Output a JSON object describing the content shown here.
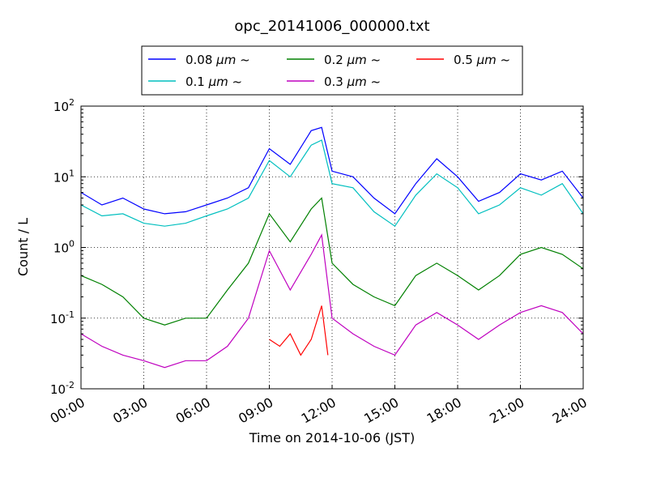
{
  "chart_data": {
    "type": "line",
    "title": "opc_20141006_000000.txt",
    "xlabel": "Time on 2014-10-06 (JST)",
    "ylabel": "Count / L",
    "xlim": [
      "2014-10-06 00:00",
      "2014-10-07 00:00"
    ],
    "x_ticks": [
      "00:00",
      "03:00",
      "06:00",
      "09:00",
      "12:00",
      "15:00",
      "18:00",
      "21:00",
      "24:00"
    ],
    "y_scale": "log",
    "ylim": [
      0.01,
      100
    ],
    "y_ticks": [
      {
        "base": "10",
        "exp": "-2",
        "value": 0.01
      },
      {
        "base": "10",
        "exp": "-1",
        "value": 0.1
      },
      {
        "base": "10",
        "exp": "0",
        "value": 1
      },
      {
        "base": "10",
        "exp": "1",
        "value": 10
      },
      {
        "base": "10",
        "exp": "2",
        "value": 100
      }
    ],
    "grid": true,
    "legend_position": "top-center, above plot",
    "series": [
      {
        "name": "0.08 μm ~",
        "label_value": "0.08",
        "label_unit": "μm",
        "label_suffix": "~",
        "color": "#0000ff",
        "x_hours": [
          0,
          1,
          2,
          3,
          4,
          5,
          6,
          7,
          8,
          9,
          10,
          11,
          11.5,
          12,
          13,
          14,
          15,
          16,
          17,
          18,
          19,
          20,
          21,
          22,
          23,
          24
        ],
        "values": [
          6,
          4,
          5,
          3.5,
          3,
          3.2,
          4,
          5,
          7,
          25,
          15,
          45,
          50,
          12,
          10,
          5,
          3,
          8,
          18,
          10,
          4.5,
          6,
          11,
          9,
          12,
          5
        ]
      },
      {
        "name": "0.1 μm ~",
        "label_value": "0.1",
        "label_unit": "μm",
        "label_suffix": "~",
        "color": "#00bfbf",
        "x_hours": [
          0,
          1,
          2,
          3,
          4,
          5,
          6,
          7,
          8,
          9,
          10,
          11,
          11.5,
          12,
          13,
          14,
          15,
          16,
          17,
          18,
          19,
          20,
          21,
          22,
          23,
          24
        ],
        "values": [
          4,
          2.8,
          3,
          2.2,
          2,
          2.2,
          2.8,
          3.5,
          5,
          17,
          10,
          28,
          33,
          8,
          7,
          3.2,
          2,
          5.5,
          11,
          7,
          3,
          4,
          7,
          5.5,
          8,
          3
        ]
      },
      {
        "name": "0.2 μm ~",
        "label_value": "0.2",
        "label_unit": "μm",
        "label_suffix": "~",
        "color": "#008000",
        "x_hours": [
          0,
          1,
          2,
          3,
          4,
          5,
          6,
          7,
          8,
          9,
          10,
          11,
          11.5,
          12,
          13,
          14,
          15,
          16,
          17,
          18,
          19,
          20,
          21,
          22,
          23,
          24
        ],
        "values": [
          0.4,
          0.3,
          0.2,
          0.1,
          0.08,
          0.1,
          0.1,
          0.25,
          0.6,
          3,
          1.2,
          3.5,
          5,
          0.6,
          0.3,
          0.2,
          0.15,
          0.4,
          0.6,
          0.4,
          0.25,
          0.4,
          0.8,
          1,
          0.8,
          0.5
        ]
      },
      {
        "name": "0.3 μm ~",
        "label_value": "0.3",
        "label_unit": "μm",
        "label_suffix": "~",
        "color": "#bf00bf",
        "x_hours": [
          0,
          1,
          2,
          3,
          4,
          5,
          6,
          7,
          8,
          9,
          10,
          11,
          11.5,
          12,
          13,
          14,
          15,
          16,
          17,
          18,
          19,
          20,
          21,
          22,
          23,
          24
        ],
        "values": [
          0.06,
          0.04,
          0.03,
          0.025,
          0.02,
          0.025,
          0.025,
          0.04,
          0.1,
          0.9,
          0.25,
          0.8,
          1.5,
          0.1,
          0.06,
          0.04,
          0.03,
          0.08,
          0.12,
          0.08,
          0.05,
          0.08,
          0.12,
          0.15,
          0.12,
          0.06
        ]
      },
      {
        "name": "0.5 μm ~",
        "label_value": "0.5",
        "label_unit": "μm",
        "label_suffix": "~",
        "color": "#ff0000",
        "x_hours": [
          9,
          9.5,
          10,
          10.5,
          11,
          11.5,
          11.8
        ],
        "values": [
          0.05,
          0.04,
          0.06,
          0.03,
          0.05,
          0.15,
          0.03
        ]
      }
    ]
  }
}
